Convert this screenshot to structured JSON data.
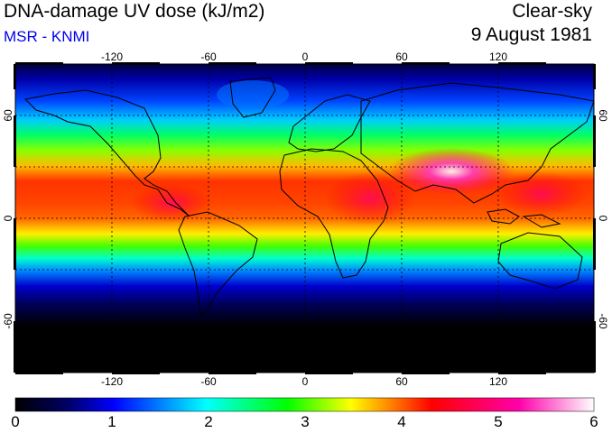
{
  "header": {
    "title": "DNA-damage UV dose (kJ/m2)",
    "source": "MSR - KNMI",
    "condition": "Clear-sky",
    "date": "9 August 1981"
  },
  "map": {
    "projection": "equirectangular",
    "lon_range": [
      -180,
      180
    ],
    "lat_range": [
      -90,
      90
    ],
    "lon_ticks": [
      "-120",
      "-60",
      "0",
      "60",
      "120"
    ],
    "lat_ticks": [
      "60",
      "0",
      "-60"
    ],
    "gridlines": "dotted every 30 degrees",
    "coastlines": true
  },
  "colorbar": {
    "labels": [
      "0",
      "1",
      "2",
      "3",
      "4",
      "5",
      "6"
    ],
    "stops": [
      "#000000",
      "#000066",
      "#0000ff",
      "#00ffff",
      "#00ff00",
      "#ffff00",
      "#ff0000",
      "#ff00aa",
      "#ffffff"
    ]
  }
}
